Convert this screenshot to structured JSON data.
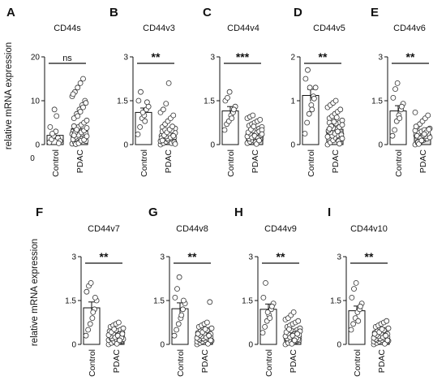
{
  "figure": {
    "ylabel": "relative mRNA expression",
    "extra_zero_label": "0"
  },
  "chart_data": [
    {
      "letter": "A",
      "type": "bar",
      "title": "CD44s",
      "categories": [
        "Control",
        "PDAC"
      ],
      "ylim": [
        0,
        20
      ],
      "yticks": [
        "0",
        "10",
        "20"
      ],
      "bar_values": [
        2.1,
        3.6
      ],
      "sem": [
        0.9,
        0.8
      ],
      "sig": "ns",
      "points": [
        [
          0.5,
          1.2,
          2.0,
          3.0,
          1.5,
          0.8,
          4.0,
          2.5,
          8.0,
          6.5,
          0.3
        ],
        [
          0.2,
          0.5,
          1.0,
          1.5,
          2.0,
          2.5,
          3.0,
          3.5,
          4.0,
          4.5,
          5.0,
          5.5,
          6.0,
          7.0,
          8.0,
          9.0,
          10.0,
          11.0,
          12.0,
          13.0,
          14.0,
          15.0,
          0.8,
          1.2,
          1.8,
          2.2,
          2.8,
          3.2,
          3.8,
          4.2,
          0.4,
          0.6,
          1.4,
          1.6,
          2.4,
          2.6,
          6.5,
          7.5,
          8.5,
          9.5,
          11.5,
          0.1,
          0.3,
          0.9,
          1.1,
          1.9,
          2.1,
          3.4
        ]
      ]
    },
    {
      "letter": "B",
      "type": "bar",
      "title": "CD44v3",
      "categories": [
        "Control",
        "PDAC"
      ],
      "ylim": [
        0,
        3
      ],
      "yticks": [
        "0",
        "1.5",
        "3"
      ],
      "bar_values": [
        1.1,
        0.35
      ],
      "sem": [
        0.15,
        0.05
      ],
      "sig": "**",
      "points": [
        [
          0.35,
          0.6,
          0.9,
          1.0,
          1.2,
          1.3,
          1.5,
          1.8,
          1.1,
          0.8,
          1.45
        ],
        [
          0.0,
          0.05,
          0.1,
          0.15,
          0.2,
          0.25,
          0.3,
          0.35,
          0.4,
          0.45,
          0.5,
          0.55,
          0.6,
          0.7,
          0.8,
          0.9,
          1.0,
          1.1,
          1.2,
          1.4,
          2.1,
          0.05,
          0.1,
          0.15,
          0.2,
          0.25,
          0.3,
          0.35,
          0.4,
          0.45,
          0.5,
          0.2,
          0.25,
          0.3,
          0.12,
          0.18,
          0.28,
          0.38,
          0.48,
          0.08,
          0.22,
          0.32,
          0.42,
          0.52,
          0.62,
          0.02,
          0.14
        ]
      ]
    },
    {
      "letter": "C",
      "type": "bar",
      "title": "CD44v4",
      "categories": [
        "Control",
        "PDAC"
      ],
      "ylim": [
        0,
        3
      ],
      "yticks": [
        "0",
        "1.5",
        "3"
      ],
      "bar_values": [
        1.15,
        0.35
      ],
      "sem": [
        0.15,
        0.04
      ],
      "sig": "***",
      "points": [
        [
          0.5,
          0.7,
          0.8,
          1.0,
          1.1,
          1.3,
          1.5,
          1.6,
          1.8,
          0.9,
          1.2
        ],
        [
          0.05,
          0.1,
          0.15,
          0.2,
          0.25,
          0.3,
          0.35,
          0.4,
          0.45,
          0.5,
          0.55,
          0.6,
          0.65,
          0.7,
          0.75,
          0.8,
          0.85,
          0.9,
          0.95,
          1.0,
          0.1,
          0.15,
          0.2,
          0.25,
          0.3,
          0.35,
          0.4,
          0.45,
          0.5,
          0.2,
          0.25,
          0.3,
          0.12,
          0.18,
          0.28,
          0.38,
          0.48,
          0.08,
          0.22,
          0.32,
          0.42,
          0.52,
          0.62,
          0.02,
          0.14,
          0.36
        ]
      ]
    },
    {
      "letter": "D",
      "type": "bar",
      "title": "CD44v5",
      "categories": [
        "Control",
        "PDAC"
      ],
      "ylim": [
        0,
        2
      ],
      "yticks": [
        "0",
        "1",
        "2"
      ],
      "bar_values": [
        1.12,
        0.35
      ],
      "sem": [
        0.14,
        0.04
      ],
      "sig": "**",
      "points": [
        [
          0.25,
          0.5,
          0.7,
          0.9,
          1.1,
          1.3,
          1.5,
          1.7,
          1.3,
          0.8,
          1.05
        ],
        [
          0.0,
          0.05,
          0.1,
          0.15,
          0.2,
          0.25,
          0.3,
          0.35,
          0.4,
          0.45,
          0.5,
          0.55,
          0.6,
          0.65,
          0.7,
          0.75,
          0.8,
          0.85,
          0.9,
          0.95,
          1.0,
          0.1,
          0.15,
          0.2,
          0.25,
          0.3,
          0.35,
          0.4,
          0.45,
          0.5,
          0.2,
          0.25,
          0.3,
          0.12,
          0.18,
          0.28,
          0.38,
          0.48,
          0.08,
          0.22,
          0.32,
          0.42,
          0.52,
          0.62,
          0.02,
          0.14,
          0.36
        ]
      ]
    },
    {
      "letter": "E",
      "type": "bar",
      "title": "CD44v6",
      "categories": [
        "Control",
        "PDAC"
      ],
      "ylim": [
        0,
        3
      ],
      "yticks": [
        "0",
        "1.5",
        "3"
      ],
      "bar_values": [
        1.15,
        0.35
      ],
      "sem": [
        0.18,
        0.04
      ],
      "sig": "**",
      "points": [
        [
          0.3,
          0.5,
          0.8,
          1.0,
          1.2,
          1.4,
          1.6,
          1.9,
          2.1,
          0.9,
          1.3
        ],
        [
          0.0,
          0.05,
          0.1,
          0.15,
          0.2,
          0.25,
          0.3,
          0.35,
          0.4,
          0.45,
          0.5,
          0.55,
          0.6,
          0.7,
          0.8,
          0.9,
          1.0,
          1.1,
          0.1,
          0.15,
          0.2,
          0.25,
          0.3,
          0.35,
          0.4,
          0.45,
          0.5,
          0.2,
          0.25,
          0.3,
          0.12,
          0.18,
          0.28,
          0.38,
          0.48,
          0.08,
          0.22,
          0.32,
          0.42,
          0.52,
          0.62,
          0.02,
          0.14,
          0.36
        ]
      ]
    },
    {
      "letter": "F",
      "type": "bar",
      "title": "CD44v7",
      "categories": [
        "Control",
        "PDAC"
      ],
      "ylim": [
        0,
        3
      ],
      "yticks": [
        "0",
        "1.5",
        "3"
      ],
      "bar_values": [
        1.25,
        0.25
      ],
      "sem": [
        0.2,
        0.03
      ],
      "sig": "**",
      "points": [
        [
          0.3,
          0.5,
          0.7,
          0.9,
          1.2,
          1.5,
          1.8,
          2.0,
          2.1,
          1.1,
          1.6
        ],
        [
          0.0,
          0.05,
          0.1,
          0.15,
          0.2,
          0.25,
          0.3,
          0.35,
          0.4,
          0.45,
          0.5,
          0.55,
          0.6,
          0.65,
          0.7,
          0.75,
          0.1,
          0.15,
          0.2,
          0.25,
          0.3,
          0.35,
          0.4,
          0.45,
          0.2,
          0.25,
          0.3,
          0.12,
          0.18,
          0.28,
          0.38,
          0.48,
          0.08,
          0.22,
          0.32,
          0.42,
          0.52,
          0.02,
          0.14,
          0.36
        ]
      ]
    },
    {
      "letter": "G",
      "type": "bar",
      "title": "CD44v8",
      "categories": [
        "Control",
        "PDAC"
      ],
      "ylim": [
        0,
        3
      ],
      "yticks": [
        "0",
        "1.5",
        "3"
      ],
      "bar_values": [
        1.22,
        0.28
      ],
      "sem": [
        0.2,
        0.04
      ],
      "sig": "**",
      "points": [
        [
          0.3,
          0.5,
          0.7,
          0.9,
          1.2,
          1.4,
          1.6,
          1.9,
          2.3,
          1.0,
          1.5
        ],
        [
          0.0,
          0.05,
          0.1,
          0.15,
          0.2,
          0.25,
          0.3,
          0.35,
          0.4,
          0.45,
          0.5,
          0.55,
          0.6,
          0.65,
          0.7,
          0.75,
          1.45,
          0.1,
          0.15,
          0.2,
          0.25,
          0.3,
          0.35,
          0.4,
          0.45,
          0.2,
          0.25,
          0.3,
          0.12,
          0.18,
          0.28,
          0.38,
          0.48,
          0.08,
          0.22,
          0.32,
          0.42,
          0.52,
          0.02,
          0.14,
          0.36
        ]
      ]
    },
    {
      "letter": "H",
      "type": "bar",
      "title": "CD44v9",
      "categories": [
        "Control",
        "PDAC"
      ],
      "ylim": [
        0,
        3
      ],
      "yticks": [
        "0",
        "1.5",
        "3"
      ],
      "bar_values": [
        1.2,
        0.3
      ],
      "sem": [
        0.18,
        0.04
      ],
      "sig": "**",
      "points": [
        [
          0.4,
          0.6,
          0.8,
          1.0,
          1.2,
          1.4,
          1.6,
          2.1,
          1.1,
          0.9,
          1.3
        ],
        [
          0.0,
          0.05,
          0.1,
          0.15,
          0.2,
          0.25,
          0.3,
          0.35,
          0.4,
          0.45,
          0.5,
          0.55,
          0.6,
          0.65,
          0.7,
          0.75,
          0.8,
          0.85,
          0.9,
          1.0,
          1.1,
          0.1,
          0.15,
          0.2,
          0.25,
          0.3,
          0.35,
          0.4,
          0.45,
          0.2,
          0.25,
          0.3,
          0.12,
          0.18,
          0.28,
          0.38,
          0.48,
          0.08,
          0.22,
          0.32,
          0.42,
          0.52,
          0.02,
          0.14,
          0.36
        ]
      ]
    },
    {
      "letter": "I",
      "type": "bar",
      "title": "CD44v10",
      "categories": [
        "Control",
        "PDAC"
      ],
      "ylim": [
        0,
        3
      ],
      "yticks": [
        "0",
        "1.5",
        "3"
      ],
      "bar_values": [
        1.15,
        0.3
      ],
      "sem": [
        0.16,
        0.04
      ],
      "sig": "**",
      "points": [
        [
          0.5,
          0.7,
          0.9,
          1.1,
          1.2,
          1.4,
          1.6,
          1.9,
          2.1,
          0.8,
          1.3
        ],
        [
          0.0,
          0.05,
          0.1,
          0.15,
          0.2,
          0.25,
          0.3,
          0.35,
          0.4,
          0.45,
          0.5,
          0.55,
          0.6,
          0.65,
          0.7,
          0.75,
          0.8,
          0.1,
          0.15,
          0.2,
          0.25,
          0.3,
          0.35,
          0.4,
          0.45,
          0.2,
          0.25,
          0.3,
          0.12,
          0.18,
          0.28,
          0.38,
          0.48,
          0.08,
          0.22,
          0.32,
          0.42,
          0.52,
          0.02,
          0.14,
          0.36
        ]
      ]
    }
  ]
}
